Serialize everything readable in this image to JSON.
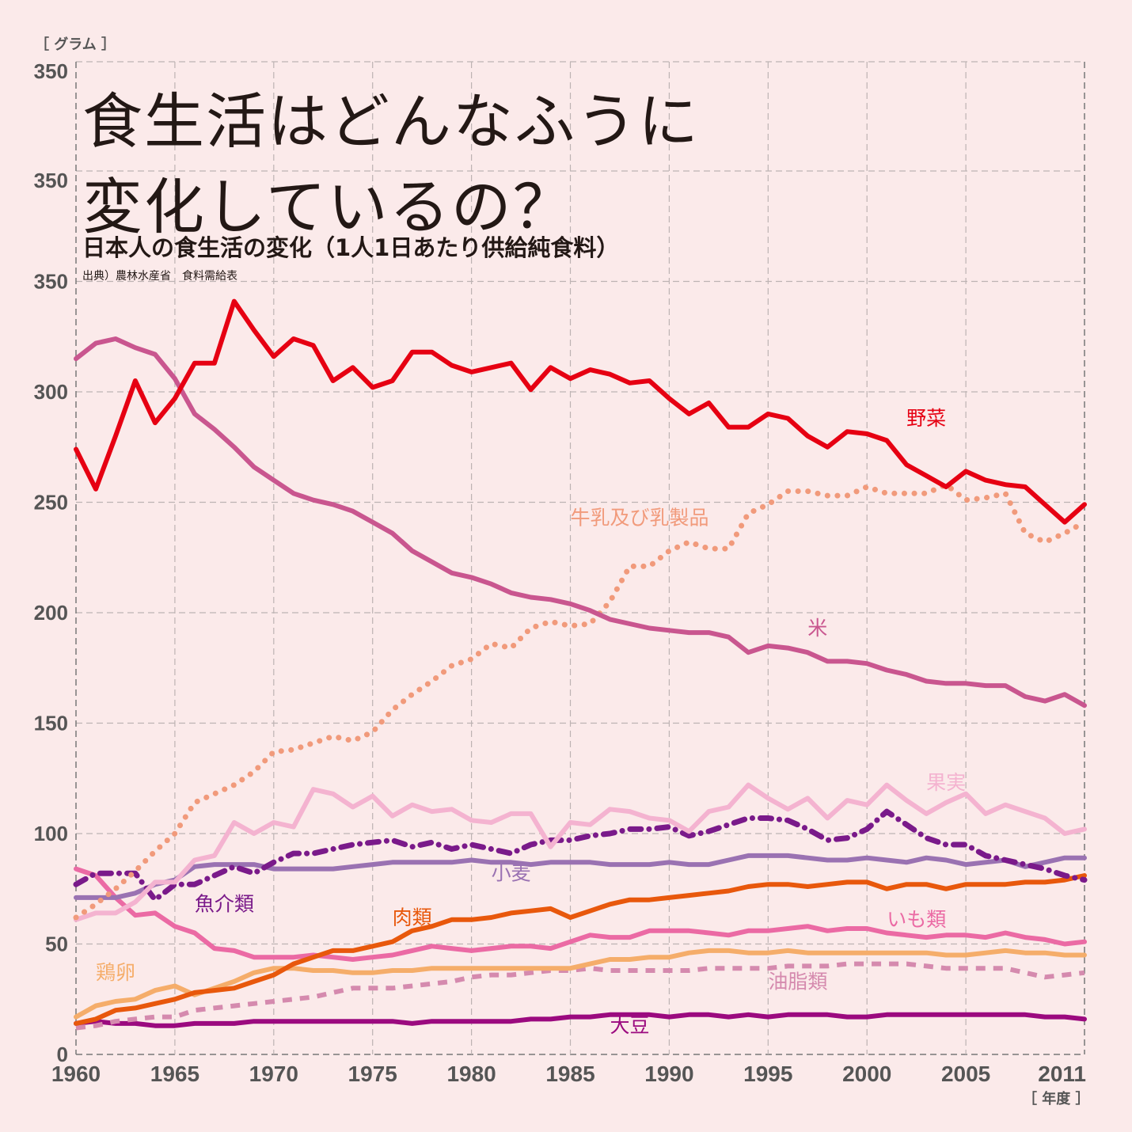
{
  "header": {
    "title_line1": "食生活はどんなふうに",
    "title_line2": "変化しているの？",
    "subtitle": "日本人の食生活の変化（1人1日あたり供給純食料）",
    "source": "出典）農林水産省　食料需給表"
  },
  "chart_data": {
    "type": "line",
    "title": "日本人の食生活の変化（1人1日あたり供給純食料）",
    "xlabel": "［ 年度 ］",
    "ylabel": "［ グラム ］",
    "xlim": [
      1960,
      2011
    ],
    "ylim": [
      0,
      350
    ],
    "grid": true,
    "x_ticks": [
      "1960",
      "1965",
      "1970",
      "1975",
      "1980",
      "1985",
      "1990",
      "1995",
      "2000",
      "2005",
      "2011"
    ],
    "y_ticks": [
      "0",
      "50",
      "100",
      "150",
      "200",
      "250",
      "300",
      "350"
    ],
    "extra_y_tick_labels": [
      "350",
      "350"
    ],
    "x": [
      1960,
      1961,
      1962,
      1963,
      1964,
      1965,
      1966,
      1967,
      1968,
      1969,
      1970,
      1971,
      1972,
      1973,
      1974,
      1975,
      1976,
      1977,
      1978,
      1979,
      1980,
      1981,
      1982,
      1983,
      1984,
      1985,
      1986,
      1987,
      1988,
      1989,
      1990,
      1991,
      1992,
      1993,
      1994,
      1995,
      1996,
      1997,
      1998,
      1999,
      2000,
      2001,
      2002,
      2003,
      2004,
      2005,
      2006,
      2007,
      2008,
      2009,
      2010,
      2011
    ],
    "series": [
      {
        "name": "野菜",
        "color": "#e60012",
        "style": "solid",
        "label_at": [
          2002,
          285
        ],
        "values": [
          274,
          256,
          280,
          305,
          286,
          297,
          313,
          313,
          341,
          328,
          316,
          324,
          321,
          305,
          311,
          302,
          305,
          318,
          318,
          312,
          309,
          311,
          313,
          301,
          311,
          306,
          310,
          308,
          304,
          305,
          297,
          290,
          295,
          284,
          284,
          290,
          288,
          280,
          275,
          282,
          281,
          278,
          267,
          262,
          257,
          264,
          260,
          258,
          257,
          249,
          241,
          249
        ]
      },
      {
        "name": "米",
        "color": "#c9568f",
        "style": "solid",
        "label_at": [
          1997,
          190
        ],
        "values": [
          315,
          322,
          324,
          320,
          317,
          306,
          290,
          283,
          275,
          266,
          260,
          254,
          251,
          249,
          246,
          241,
          236,
          228,
          223,
          218,
          216,
          213,
          209,
          207,
          206,
          204,
          201,
          197,
          195,
          193,
          192,
          191,
          191,
          189,
          182,
          185,
          184,
          182,
          178,
          178,
          177,
          174,
          172,
          169,
          168,
          168,
          167,
          167,
          162,
          160,
          163,
          158
        ]
      },
      {
        "name": "牛乳及び乳製品",
        "color": "#f19a7b",
        "style": "dotted",
        "label_at": [
          1985,
          240
        ],
        "values": [
          62,
          68,
          75,
          83,
          92,
          100,
          114,
          118,
          122,
          128,
          137,
          138,
          141,
          144,
          142,
          146,
          156,
          163,
          169,
          176,
          179,
          186,
          184,
          193,
          196,
          194,
          195,
          205,
          221,
          221,
          228,
          232,
          229,
          229,
          245,
          249,
          255,
          255,
          253,
          253,
          257,
          254,
          254,
          254,
          258,
          251,
          252,
          254,
          236,
          232,
          236,
          241
        ]
      },
      {
        "name": "果実",
        "color": "#f4b3d0",
        "style": "solid",
        "label_at": [
          2003,
          120
        ],
        "values": [
          61,
          64,
          64,
          69,
          78,
          78,
          88,
          90,
          105,
          100,
          105,
          103,
          120,
          118,
          112,
          117,
          108,
          113,
          110,
          111,
          106,
          105,
          109,
          109,
          94,
          105,
          104,
          111,
          110,
          107,
          106,
          101,
          110,
          112,
          122,
          116,
          111,
          116,
          107,
          115,
          113,
          122,
          115,
          109,
          114,
          118,
          109,
          113,
          110,
          107,
          100,
          102
        ]
      },
      {
        "name": "魚介類",
        "color": "#7a1a8a",
        "style": "dashdot",
        "label_at": [
          1966,
          65
        ],
        "values": [
          77,
          82,
          82,
          82,
          70,
          77,
          77,
          81,
          85,
          82,
          87,
          91,
          91,
          93,
          95,
          96,
          97,
          94,
          96,
          93,
          95,
          93,
          91,
          95,
          97,
          97,
          99,
          100,
          102,
          102,
          103,
          99,
          101,
          104,
          107,
          107,
          106,
          102,
          97,
          98,
          102,
          110,
          104,
          98,
          95,
          95,
          90,
          88,
          86,
          84,
          81,
          79
        ]
      },
      {
        "name": "小麦",
        "color": "#9a72b2",
        "style": "solid",
        "label_at": [
          1981,
          79
        ],
        "values": [
          71,
          71,
          71,
          73,
          77,
          79,
          85,
          86,
          86,
          86,
          84,
          84,
          84,
          84,
          85,
          86,
          87,
          87,
          87,
          87,
          88,
          87,
          87,
          86,
          87,
          87,
          87,
          86,
          86,
          86,
          87,
          86,
          86,
          88,
          90,
          90,
          90,
          89,
          88,
          88,
          89,
          88,
          87,
          89,
          88,
          86,
          87,
          88,
          85,
          87,
          89,
          89
        ]
      },
      {
        "name": "肉類",
        "color": "#e8580c",
        "style": "solid",
        "label_at": [
          1976,
          59
        ],
        "values": [
          14,
          16,
          20,
          21,
          23,
          25,
          28,
          29,
          30,
          33,
          36,
          41,
          44,
          47,
          47,
          49,
          51,
          56,
          58,
          61,
          61,
          62,
          64,
          65,
          66,
          62,
          65,
          68,
          70,
          70,
          71,
          72,
          73,
          74,
          76,
          77,
          77,
          76,
          77,
          78,
          78,
          75,
          77,
          77,
          75,
          77,
          77,
          77,
          78,
          78,
          79,
          81
        ]
      },
      {
        "name": "いも類",
        "color": "#eb6aa4",
        "style": "solid",
        "label_at": [
          2001,
          58
        ],
        "values": [
          84,
          81,
          71,
          63,
          64,
          58,
          55,
          48,
          47,
          44,
          44,
          44,
          45,
          44,
          43,
          44,
          45,
          47,
          49,
          48,
          47,
          48,
          49,
          49,
          48,
          51,
          54,
          53,
          53,
          56,
          56,
          56,
          55,
          54,
          56,
          56,
          57,
          58,
          56,
          57,
          57,
          55,
          54,
          53,
          54,
          54,
          53,
          55,
          53,
          52,
          50,
          51
        ]
      },
      {
        "name": "鶏卵",
        "color": "#f5ad6a",
        "style": "solid",
        "label_at": [
          1961,
          34
        ],
        "values": [
          17,
          22,
          24,
          25,
          29,
          31,
          27,
          30,
          33,
          37,
          39,
          39,
          38,
          38,
          37,
          37,
          38,
          38,
          39,
          39,
          39,
          39,
          39,
          39,
          39,
          39,
          41,
          43,
          43,
          44,
          44,
          46,
          47,
          47,
          46,
          46,
          47,
          46,
          46,
          46,
          46,
          46,
          46,
          46,
          45,
          45,
          46,
          47,
          46,
          46,
          45,
          45
        ]
      },
      {
        "name": "油脂類",
        "color": "#d58aae",
        "style": "dashed",
        "label_at": [
          1995,
          30
        ],
        "values": [
          12,
          13,
          15,
          16,
          17,
          17,
          20,
          21,
          22,
          23,
          24,
          25,
          26,
          28,
          30,
          30,
          30,
          31,
          32,
          33,
          35,
          36,
          36,
          37,
          38,
          38,
          39,
          38,
          38,
          38,
          38,
          38,
          39,
          39,
          39,
          39,
          40,
          40,
          40,
          41,
          41,
          41,
          41,
          40,
          39,
          39,
          39,
          39,
          37,
          35,
          36,
          37
        ]
      },
      {
        "name": "大豆",
        "color": "#9b0a7f",
        "style": "solid",
        "label_at": [
          1987,
          10
        ],
        "values": [
          14,
          15,
          14,
          14,
          13,
          13,
          14,
          14,
          14,
          15,
          15,
          15,
          15,
          15,
          15,
          15,
          15,
          14,
          15,
          15,
          15,
          15,
          15,
          16,
          16,
          17,
          17,
          18,
          18,
          18,
          17,
          18,
          18,
          17,
          18,
          17,
          18,
          18,
          18,
          17,
          17,
          18,
          18,
          18,
          18,
          18,
          18,
          18,
          18,
          17,
          17,
          16
        ]
      }
    ]
  }
}
